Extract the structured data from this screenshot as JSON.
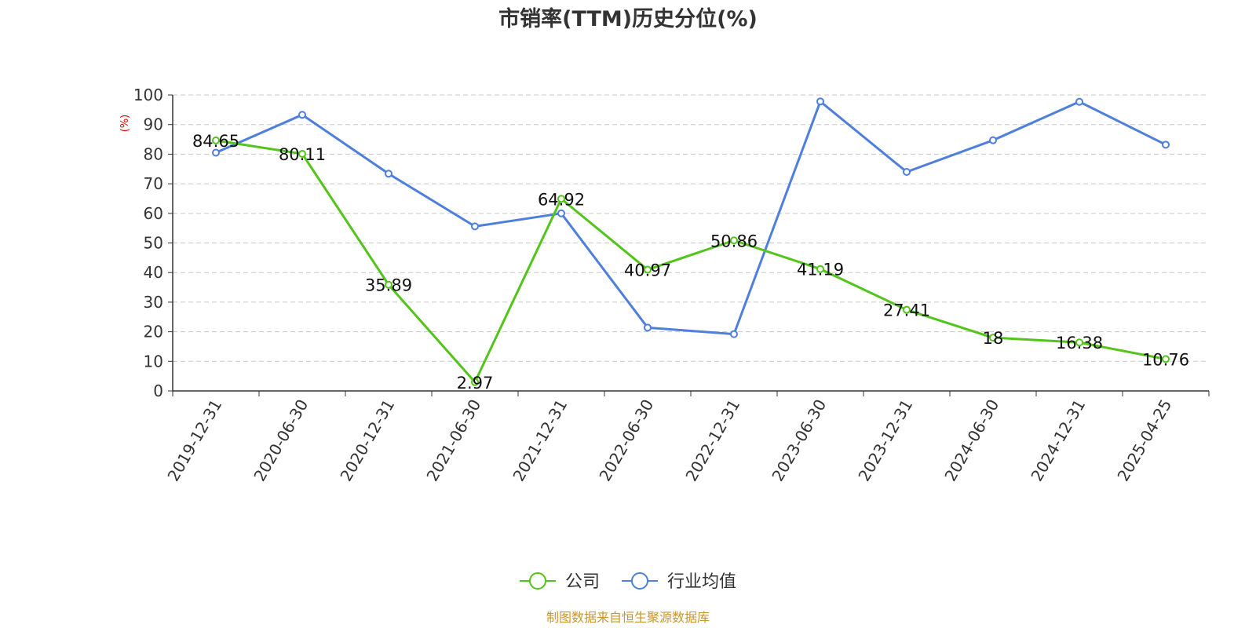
{
  "title": "市销率(TTM)历史分位(%)",
  "source": "制图数据来自恒生聚源数据库",
  "colors": {
    "company": "#52c41a",
    "industry": "#4e7fdc",
    "unit": "#e00000",
    "source": "#c8962c"
  },
  "chart_data": {
    "type": "line",
    "title": "市销率(TTM)历史分位(%)",
    "ylabel": "(%)",
    "ylim": [
      0,
      100
    ],
    "yticks": [
      "0",
      "10",
      "20",
      "30",
      "40",
      "50",
      "60",
      "70",
      "80",
      "90",
      "100"
    ],
    "grid": true,
    "legend_position": "bottom",
    "categories": [
      "2019-12-31",
      "2020-06-30",
      "2020-12-31",
      "2021-06-30",
      "2021-12-31",
      "2022-06-30",
      "2022-12-31",
      "2023-06-30",
      "2023-12-31",
      "2024-06-30",
      "2024-12-31",
      "2025-04-25"
    ],
    "series": [
      {
        "name": "公司",
        "values": [
          84.65,
          80.11,
          35.89,
          2.97,
          64.92,
          40.97,
          50.86,
          41.19,
          27.41,
          18,
          16.38,
          10.76
        ],
        "labels": [
          "84.65",
          "80.11",
          "35.89",
          "2.97",
          "64.92",
          "40.97",
          "50.86",
          "41.19",
          "27.41",
          "18",
          "16.38",
          "10.76"
        ]
      },
      {
        "name": "行业均值",
        "values": [
          80.5,
          93.3,
          73.4,
          55.6,
          60.0,
          21.4,
          19.2,
          97.8,
          74.0,
          84.7,
          97.7,
          83.2
        ]
      }
    ]
  }
}
